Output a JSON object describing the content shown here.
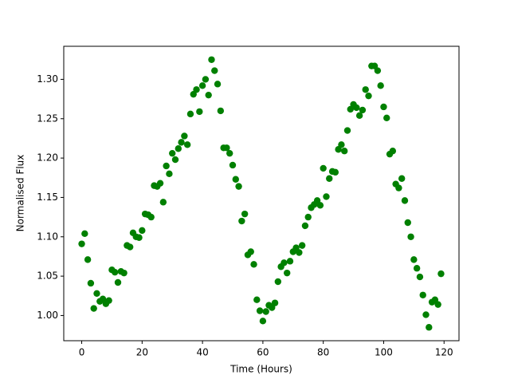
{
  "chart_data": {
    "type": "scatter",
    "x_label": "Time (Hours)",
    "y_label": "Normalised Flux",
    "color": "#008000",
    "x": [
      0,
      1,
      2,
      3,
      4,
      5,
      6,
      7,
      8,
      9,
      10,
      11,
      12,
      13,
      14,
      15,
      16,
      17,
      18,
      19,
      20,
      21,
      22,
      23,
      24,
      25,
      26,
      27,
      28,
      29,
      30,
      31,
      32,
      33,
      34,
      35,
      36,
      37,
      38,
      39,
      40,
      41,
      42,
      43,
      44,
      45,
      46,
      47,
      48,
      49,
      50,
      51,
      52,
      53,
      54,
      55,
      56,
      57,
      58,
      59,
      60,
      61,
      62,
      63,
      64,
      65,
      66,
      67,
      68,
      69,
      70,
      71,
      72,
      73,
      74,
      75,
      76,
      77,
      78,
      79,
      80,
      81,
      82,
      83,
      84,
      85,
      86,
      87,
      88,
      89,
      90,
      91,
      92,
      93,
      94,
      95,
      96,
      97,
      98,
      99,
      100,
      101,
      102,
      103,
      104,
      105,
      106,
      107,
      108,
      109,
      110,
      111,
      112,
      113,
      114,
      115,
      116,
      117,
      118,
      119
    ],
    "values": [
      1.091,
      1.104,
      1.071,
      1.041,
      1.009,
      1.028,
      1.018,
      1.021,
      1.015,
      1.019,
      1.058,
      1.055,
      1.042,
      1.056,
      1.054,
      1.089,
      1.087,
      1.105,
      1.1,
      1.099,
      1.108,
      1.129,
      1.128,
      1.125,
      1.165,
      1.164,
      1.168,
      1.144,
      1.19,
      1.18,
      1.206,
      1.198,
      1.212,
      1.22,
      1.228,
      1.217,
      1.256,
      1.281,
      1.287,
      1.259,
      1.292,
      1.3,
      1.28,
      1.325,
      1.311,
      1.294,
      1.26,
      1.213,
      1.213,
      1.206,
      1.191,
      1.173,
      1.164,
      1.12,
      1.129,
      1.077,
      1.081,
      1.065,
      1.02,
      1.006,
      0.993,
      1.005,
      1.013,
      1.01,
      1.016,
      1.043,
      1.062,
      1.067,
      1.054,
      1.069,
      1.081,
      1.086,
      1.08,
      1.089,
      1.114,
      1.125,
      1.137,
      1.141,
      1.146,
      1.14,
      1.187,
      1.151,
      1.174,
      1.183,
      1.182,
      1.211,
      1.217,
      1.209,
      1.235,
      1.262,
      1.268,
      1.264,
      1.254,
      1.261,
      1.287,
      1.279,
      1.317,
      1.317,
      1.311,
      1.292,
      1.265,
      1.251,
      1.205,
      1.209,
      1.167,
      1.162,
      1.174,
      1.146,
      1.118,
      1.1,
      1.071,
      1.06,
      1.049,
      1.026,
      1.001,
      0.985,
      1.017,
      1.02,
      1.014,
      1.053
    ],
    "xlim": [
      -5.95,
      124.95
    ],
    "ylim": [
      0.968,
      1.342
    ],
    "xticks": [
      0,
      20,
      40,
      60,
      80,
      100,
      120
    ],
    "yticks": [
      {
        "value": 1.0,
        "label": "1.00"
      },
      {
        "value": 1.05,
        "label": "1.05"
      },
      {
        "value": 1.1,
        "label": "1.10"
      },
      {
        "value": 1.15,
        "label": "1.15"
      },
      {
        "value": 1.2,
        "label": "1.20"
      },
      {
        "value": 1.25,
        "label": "1.25"
      },
      {
        "value": 1.3,
        "label": "1.30"
      }
    ],
    "grid": false
  }
}
